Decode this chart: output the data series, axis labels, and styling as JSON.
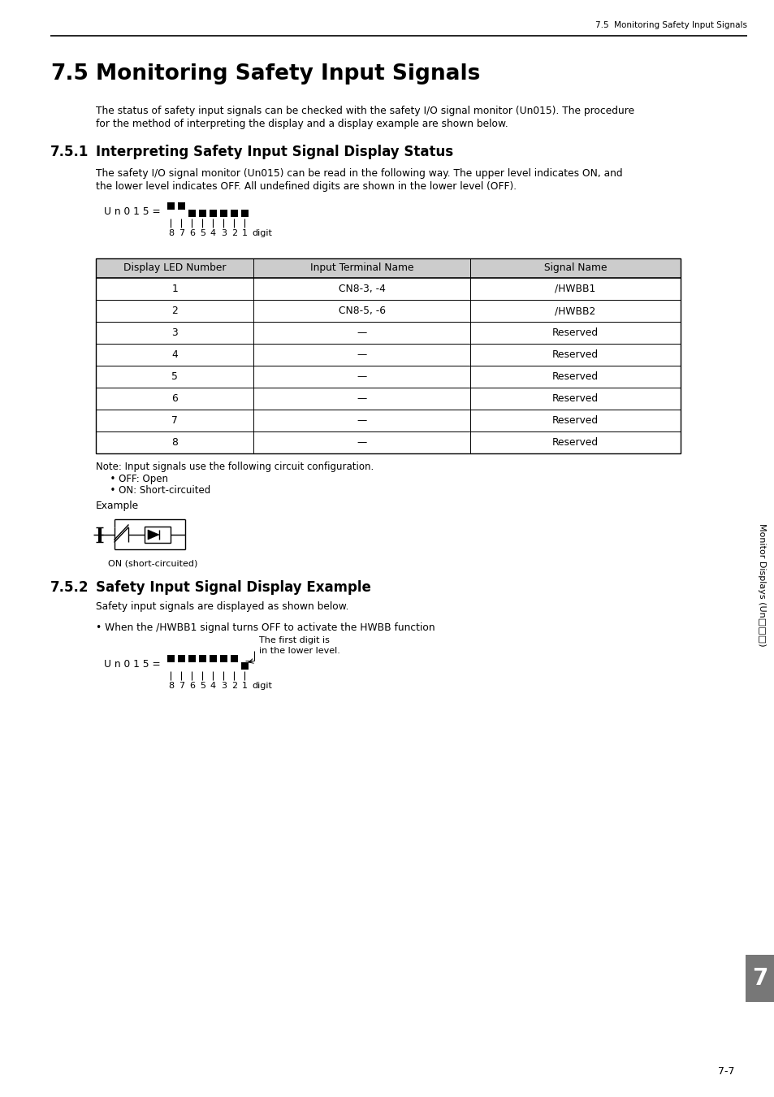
{
  "header_right": "7.5  Monitoring Safety Input Signals",
  "section_75_num": "7.5",
  "section_75_title": "Monitoring Safety Input Signals",
  "para_75_l1": "The status of safety input signals can be checked with the safety I/O signal monitor (Un015). The procedure",
  "para_75_l2": "for the method of interpreting the display and a display example are shown below.",
  "section_751_num": "7.5.1",
  "section_751_title": "Interpreting Safety Input Signal Display Status",
  "para_751_l1": "The safety I/O signal monitor (Un015) can be read in the following way. The upper level indicates ON, and",
  "para_751_l2": "the lower level indicates OFF. All undefined digits are shown in the lower level (OFF).",
  "table_headers": [
    "Display LED Number",
    "Input Terminal Name",
    "Signal Name"
  ],
  "table_rows": [
    [
      "1",
      "CN8-3, -4",
      "/HWBB1"
    ],
    [
      "2",
      "CN8-5, -6",
      "/HWBB2"
    ],
    [
      "3",
      "—",
      "Reserved"
    ],
    [
      "4",
      "—",
      "Reserved"
    ],
    [
      "5",
      "—",
      "Reserved"
    ],
    [
      "6",
      "—",
      "Reserved"
    ],
    [
      "7",
      "—",
      "Reserved"
    ],
    [
      "8",
      "—",
      "Reserved"
    ]
  ],
  "note_line1": "Note: Input signals use the following circuit configuration.",
  "note_line2": "  • OFF: Open",
  "note_line3": "  • ON: Short-circuited",
  "example_label": "Example",
  "on_label": "ON (short-circuited)",
  "section_752_num": "7.5.2",
  "section_752_title": "Safety Input Signal Display Example",
  "para_752": "Safety input signals are displayed as shown below.",
  "bullet_752": "• When the /HWBB1 signal turns OFF to activate the HWBB function",
  "annotation_752_l1": "The first digit is",
  "annotation_752_l2": "in the lower level.",
  "right_tab_text": "Monitor Displays (Un□□□)",
  "tab_number": "7",
  "page_number": "7-7",
  "bg_color": "#ffffff",
  "table_header_bg": "#cccccc",
  "tab_bg_color": "#777777"
}
